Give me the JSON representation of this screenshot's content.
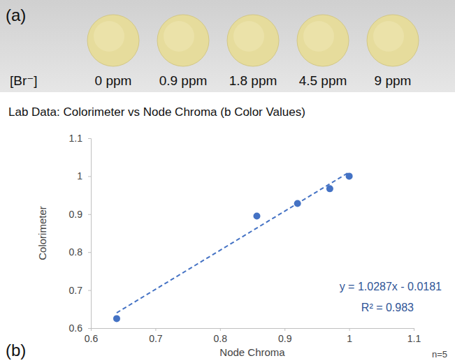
{
  "panel_a": {
    "letter": "(a)",
    "label_prefix": "[Br⁻]",
    "samples": [
      "0 ppm",
      "0.9 ppm",
      "1.8 ppm",
      "4.5 ppm",
      "9 ppm"
    ]
  },
  "chart_data": {
    "type": "scatter",
    "panel_label": "(b)",
    "title": "Lab Data: Colorimeter vs Node Chroma (b Color Values)",
    "x_label": "Node Chroma",
    "y_label": "Colorimeter",
    "x": [
      0.64,
      0.857,
      0.92,
      0.97,
      1.0
    ],
    "values": [
      0.625,
      0.895,
      0.928,
      0.967,
      1.0
    ],
    "color": "#4472c4",
    "marker": "circle",
    "xlim": [
      0.6,
      1.1
    ],
    "xticks": [
      0.6,
      0.7,
      0.8,
      0.9,
      1,
      1.1
    ],
    "ylim": [
      0.6,
      1.1
    ],
    "yticks": [
      0.6,
      0.7,
      0.8,
      0.9,
      1,
      1.1
    ],
    "grid": false,
    "trendline": {
      "slope": 1.0287,
      "intercept": -0.0181,
      "line_style": "dashed",
      "label": "y = 1.0287x - 0.0181",
      "r2_label": "R² = 0.983"
    },
    "annotation": "n=5"
  }
}
